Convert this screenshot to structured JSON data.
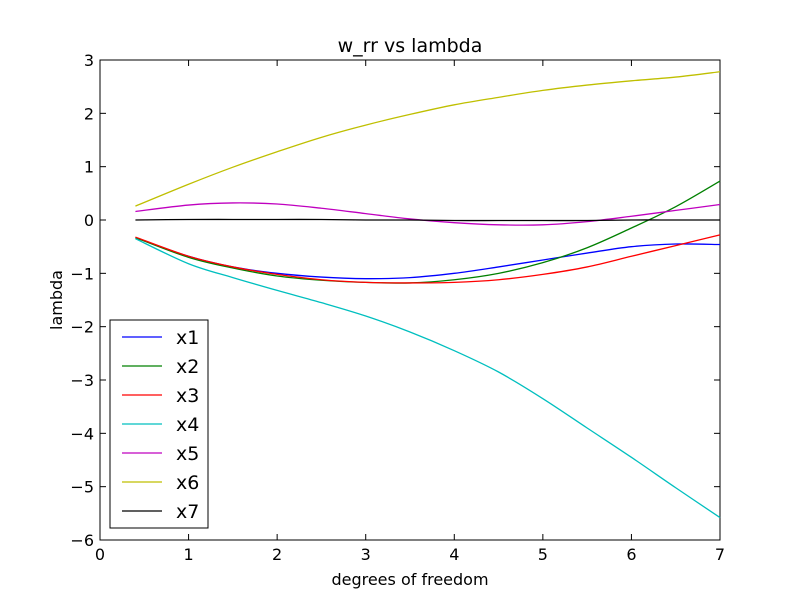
{
  "chart_data": {
    "type": "line",
    "title": "w_rr vs lambda",
    "xlabel": "degrees of freedom",
    "ylabel": "lambda",
    "xlim": [
      0,
      7
    ],
    "ylim": [
      -6,
      3
    ],
    "xticks": [
      0,
      1,
      2,
      3,
      4,
      5,
      6,
      7
    ],
    "yticks": [
      3,
      2,
      1,
      0,
      -1,
      -2,
      -3,
      -4,
      -5,
      -6
    ],
    "grid": false,
    "legend_position": "lower-left",
    "x": [
      0.4,
      1.0,
      1.5,
      2.0,
      2.5,
      3.0,
      3.5,
      4.0,
      4.5,
      5.0,
      5.5,
      6.0,
      6.5,
      7.0
    ],
    "series": [
      {
        "name": "x1",
        "color": "#0000ff",
        "values": [
          -0.33,
          -0.68,
          -0.88,
          -1.0,
          -1.07,
          -1.1,
          -1.08,
          -1.0,
          -0.88,
          -0.75,
          -0.62,
          -0.5,
          -0.45,
          -0.46
        ]
      },
      {
        "name": "x2",
        "color": "#008000",
        "values": [
          -0.33,
          -0.7,
          -0.9,
          -1.05,
          -1.13,
          -1.17,
          -1.18,
          -1.12,
          -1.0,
          -0.8,
          -0.52,
          -0.15,
          0.25,
          0.73
        ]
      },
      {
        "name": "x3",
        "color": "#ff0000",
        "values": [
          -0.32,
          -0.68,
          -0.88,
          -1.02,
          -1.12,
          -1.17,
          -1.18,
          -1.17,
          -1.12,
          -1.02,
          -0.88,
          -0.68,
          -0.48,
          -0.28
        ]
      },
      {
        "name": "x4",
        "color": "#00bfbf",
        "values": [
          -0.35,
          -0.82,
          -1.08,
          -1.32,
          -1.55,
          -1.8,
          -2.1,
          -2.45,
          -2.85,
          -3.35,
          -3.9,
          -4.45,
          -5.02,
          -5.58
        ]
      },
      {
        "name": "x5",
        "color": "#bf00bf",
        "values": [
          0.16,
          0.28,
          0.32,
          0.3,
          0.22,
          0.12,
          0.02,
          -0.05,
          -0.09,
          -0.09,
          -0.03,
          0.07,
          0.18,
          0.29
        ]
      },
      {
        "name": "x6",
        "color": "#bfbf00",
        "values": [
          0.26,
          0.67,
          0.99,
          1.28,
          1.55,
          1.78,
          1.98,
          2.16,
          2.3,
          2.43,
          2.53,
          2.61,
          2.68,
          2.78
        ]
      },
      {
        "name": "x7",
        "color": "#000000",
        "values": [
          0.0,
          0.01,
          0.01,
          0.01,
          0.01,
          0.0,
          0.0,
          -0.01,
          -0.01,
          -0.01,
          -0.01,
          0.0,
          0.0,
          0.0
        ]
      }
    ]
  }
}
